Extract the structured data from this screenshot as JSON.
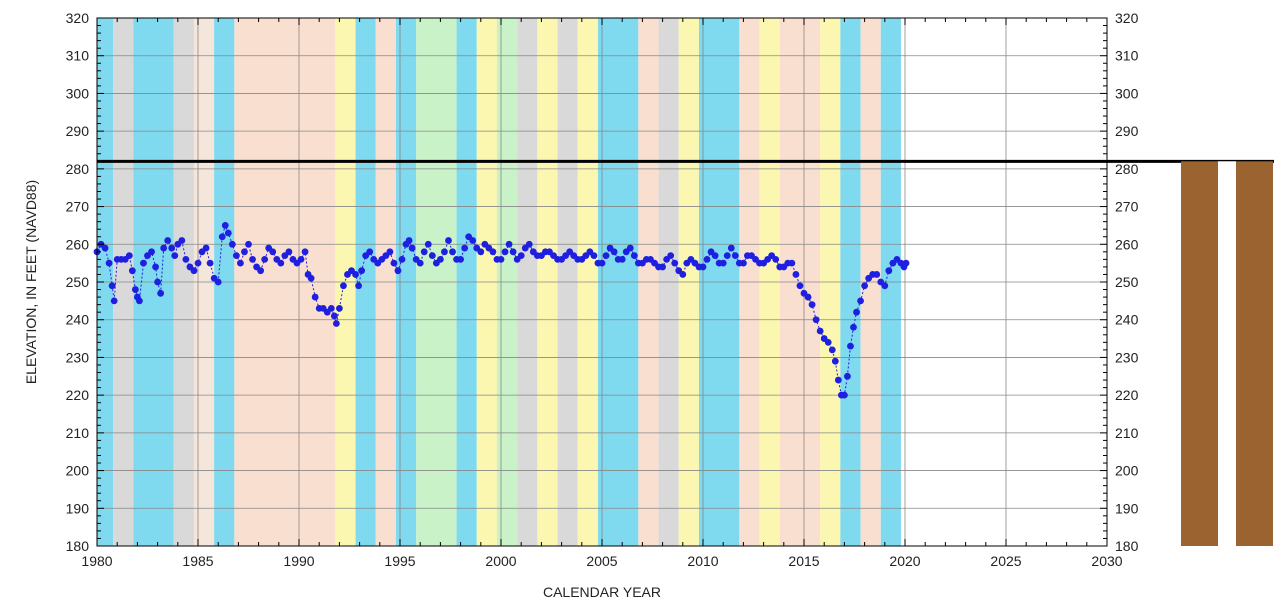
{
  "chart_data": {
    "type": "scatter",
    "title": "",
    "xlabel": "CALENDAR YEAR",
    "ylabel": "ELEVATION, IN FEET (NAVD88)",
    "xlim": [
      1980,
      2030
    ],
    "ylim": [
      180,
      320
    ],
    "x_ticks": [
      1980,
      1985,
      1990,
      1995,
      2000,
      2005,
      2010,
      2015,
      2020,
      2025,
      2030
    ],
    "y_ticks": [
      180,
      190,
      200,
      210,
      220,
      230,
      240,
      250,
      260,
      270,
      280,
      290,
      300,
      310,
      320
    ],
    "grid": true,
    "right_axis": true,
    "reference_line": {
      "value": 282,
      "color": "#000000"
    },
    "series": [
      {
        "color": "#1f1fe0",
        "points": [
          [
            1980.0,
            258
          ],
          [
            1980.2,
            260
          ],
          [
            1980.4,
            259
          ],
          [
            1980.6,
            255
          ],
          [
            1980.75,
            249
          ],
          [
            1980.85,
            245
          ],
          [
            1981.0,
            256
          ],
          [
            1981.2,
            256
          ],
          [
            1981.4,
            256
          ],
          [
            1981.6,
            257
          ],
          [
            1981.75,
            253
          ],
          [
            1981.9,
            248
          ],
          [
            1982.0,
            246
          ],
          [
            1982.1,
            245
          ],
          [
            1982.3,
            255
          ],
          [
            1982.5,
            257
          ],
          [
            1982.7,
            258
          ],
          [
            1982.9,
            254
          ],
          [
            1983.0,
            250
          ],
          [
            1983.15,
            247
          ],
          [
            1983.3,
            259
          ],
          [
            1983.5,
            261
          ],
          [
            1983.7,
            259
          ],
          [
            1983.85,
            257
          ],
          [
            1984.0,
            260
          ],
          [
            1984.2,
            261
          ],
          [
            1984.4,
            256
          ],
          [
            1984.6,
            254
          ],
          [
            1984.8,
            253
          ],
          [
            1985.0,
            255
          ],
          [
            1985.2,
            258
          ],
          [
            1985.4,
            259
          ],
          [
            1985.6,
            255
          ],
          [
            1985.8,
            251
          ],
          [
            1986.0,
            250
          ],
          [
            1986.2,
            262
          ],
          [
            1986.35,
            265
          ],
          [
            1986.5,
            263
          ],
          [
            1986.7,
            260
          ],
          [
            1986.9,
            257
          ],
          [
            1987.1,
            255
          ],
          [
            1987.3,
            258
          ],
          [
            1987.5,
            260
          ],
          [
            1987.7,
            256
          ],
          [
            1987.9,
            254
          ],
          [
            1988.1,
            253
          ],
          [
            1988.3,
            256
          ],
          [
            1988.5,
            259
          ],
          [
            1988.7,
            258
          ],
          [
            1988.9,
            256
          ],
          [
            1989.1,
            255
          ],
          [
            1989.3,
            257
          ],
          [
            1989.5,
            258
          ],
          [
            1989.7,
            256
          ],
          [
            1989.9,
            255
          ],
          [
            1990.1,
            256
          ],
          [
            1990.3,
            258
          ],
          [
            1990.45,
            252
          ],
          [
            1990.6,
            251
          ],
          [
            1990.8,
            246
          ],
          [
            1991.0,
            243
          ],
          [
            1991.2,
            243
          ],
          [
            1991.4,
            242
          ],
          [
            1991.6,
            243
          ],
          [
            1991.75,
            241
          ],
          [
            1991.85,
            239
          ],
          [
            1992.0,
            243
          ],
          [
            1992.2,
            249
          ],
          [
            1992.4,
            252
          ],
          [
            1992.6,
            253
          ],
          [
            1992.8,
            252
          ],
          [
            1992.95,
            249
          ],
          [
            1993.1,
            253
          ],
          [
            1993.3,
            257
          ],
          [
            1993.5,
            258
          ],
          [
            1993.7,
            256
          ],
          [
            1993.9,
            255
          ],
          [
            1994.1,
            256
          ],
          [
            1994.3,
            257
          ],
          [
            1994.5,
            258
          ],
          [
            1994.7,
            255
          ],
          [
            1994.9,
            253
          ],
          [
            1995.1,
            256
          ],
          [
            1995.3,
            260
          ],
          [
            1995.45,
            261
          ],
          [
            1995.6,
            259
          ],
          [
            1995.8,
            256
          ],
          [
            1996.0,
            255
          ],
          [
            1996.2,
            258
          ],
          [
            1996.4,
            260
          ],
          [
            1996.6,
            257
          ],
          [
            1996.8,
            255
          ],
          [
            1997.0,
            256
          ],
          [
            1997.2,
            258
          ],
          [
            1997.4,
            261
          ],
          [
            1997.6,
            258
          ],
          [
            1997.8,
            256
          ],
          [
            1998.0,
            256
          ],
          [
            1998.2,
            259
          ],
          [
            1998.4,
            262
          ],
          [
            1998.6,
            261
          ],
          [
            1998.8,
            259
          ],
          [
            1999.0,
            258
          ],
          [
            1999.2,
            260
          ],
          [
            1999.4,
            259
          ],
          [
            1999.6,
            258
          ],
          [
            1999.8,
            256
          ],
          [
            2000.0,
            256
          ],
          [
            2000.2,
            258
          ],
          [
            2000.4,
            260
          ],
          [
            2000.6,
            258
          ],
          [
            2000.8,
            256
          ],
          [
            2001.0,
            257
          ],
          [
            2001.2,
            259
          ],
          [
            2001.4,
            260
          ],
          [
            2001.6,
            258
          ],
          [
            2001.8,
            257
          ],
          [
            2002.0,
            257
          ],
          [
            2002.2,
            258
          ],
          [
            2002.4,
            258
          ],
          [
            2002.6,
            257
          ],
          [
            2002.8,
            256
          ],
          [
            2003.0,
            256
          ],
          [
            2003.2,
            257
          ],
          [
            2003.4,
            258
          ],
          [
            2003.6,
            257
          ],
          [
            2003.8,
            256
          ],
          [
            2004.0,
            256
          ],
          [
            2004.2,
            257
          ],
          [
            2004.4,
            258
          ],
          [
            2004.6,
            257
          ],
          [
            2004.8,
            255
          ],
          [
            2005.0,
            255
          ],
          [
            2005.2,
            257
          ],
          [
            2005.4,
            259
          ],
          [
            2005.6,
            258
          ],
          [
            2005.8,
            256
          ],
          [
            2006.0,
            256
          ],
          [
            2006.2,
            258
          ],
          [
            2006.4,
            259
          ],
          [
            2006.6,
            257
          ],
          [
            2006.8,
            255
          ],
          [
            2007.0,
            255
          ],
          [
            2007.2,
            256
          ],
          [
            2007.4,
            256
          ],
          [
            2007.6,
            255
          ],
          [
            2007.8,
            254
          ],
          [
            2008.0,
            254
          ],
          [
            2008.2,
            256
          ],
          [
            2008.4,
            257
          ],
          [
            2008.6,
            255
          ],
          [
            2008.8,
            253
          ],
          [
            2009.0,
            252
          ],
          [
            2009.2,
            255
          ],
          [
            2009.4,
            256
          ],
          [
            2009.6,
            255
          ],
          [
            2009.8,
            254
          ],
          [
            2010.0,
            254
          ],
          [
            2010.2,
            256
          ],
          [
            2010.4,
            258
          ],
          [
            2010.6,
            257
          ],
          [
            2010.8,
            255
          ],
          [
            2011.0,
            255
          ],
          [
            2011.2,
            257
          ],
          [
            2011.4,
            259
          ],
          [
            2011.6,
            257
          ],
          [
            2011.8,
            255
          ],
          [
            2012.0,
            255
          ],
          [
            2012.2,
            257
          ],
          [
            2012.4,
            257
          ],
          [
            2012.6,
            256
          ],
          [
            2012.8,
            255
          ],
          [
            2013.0,
            255
          ],
          [
            2013.2,
            256
          ],
          [
            2013.4,
            257
          ],
          [
            2013.6,
            256
          ],
          [
            2013.8,
            254
          ],
          [
            2014.0,
            254
          ],
          [
            2014.2,
            255
          ],
          [
            2014.4,
            255
          ],
          [
            2014.6,
            252
          ],
          [
            2014.8,
            249
          ],
          [
            2015.0,
            247
          ],
          [
            2015.2,
            246
          ],
          [
            2015.4,
            244
          ],
          [
            2015.6,
            240
          ],
          [
            2015.8,
            237
          ],
          [
            2016.0,
            235
          ],
          [
            2016.2,
            234
          ],
          [
            2016.4,
            232
          ],
          [
            2016.55,
            229
          ],
          [
            2016.7,
            224
          ],
          [
            2016.85,
            220
          ],
          [
            2017.0,
            220
          ],
          [
            2017.15,
            225
          ],
          [
            2017.3,
            233
          ],
          [
            2017.45,
            238
          ],
          [
            2017.6,
            242
          ],
          [
            2017.8,
            245
          ],
          [
            2018.0,
            249
          ],
          [
            2018.2,
            251
          ],
          [
            2018.4,
            252
          ],
          [
            2018.6,
            252
          ],
          [
            2018.8,
            250
          ],
          [
            2019.0,
            249
          ],
          [
            2019.2,
            253
          ],
          [
            2019.4,
            255
          ],
          [
            2019.6,
            256
          ],
          [
            2019.8,
            255
          ],
          [
            2019.95,
            254
          ],
          [
            2020.05,
            255
          ]
        ]
      }
    ],
    "background_bands": [
      {
        "from": 1980.0,
        "to": 1980.8,
        "color": "#7fd9ef"
      },
      {
        "from": 1980.8,
        "to": 1981.8,
        "color": "#d9d9d9"
      },
      {
        "from": 1981.8,
        "to": 1983.8,
        "color": "#7fd9ef"
      },
      {
        "from": 1983.8,
        "to": 1984.8,
        "color": "#d9d9d9"
      },
      {
        "from": 1984.8,
        "to": 1985.8,
        "color": "#f5e6dc"
      },
      {
        "from": 1985.8,
        "to": 1986.8,
        "color": "#7fd9ef"
      },
      {
        "from": 1986.8,
        "to": 1991.8,
        "color": "#f9dfd0"
      },
      {
        "from": 1991.8,
        "to": 1992.8,
        "color": "#fbf7b0"
      },
      {
        "from": 1992.8,
        "to": 1993.8,
        "color": "#7fd9ef"
      },
      {
        "from": 1993.8,
        "to": 1994.8,
        "color": "#f9dfd0"
      },
      {
        "from": 1994.8,
        "to": 1995.8,
        "color": "#7fd9ef"
      },
      {
        "from": 1995.8,
        "to": 1997.8,
        "color": "#c9f2c8"
      },
      {
        "from": 1997.8,
        "to": 1998.8,
        "color": "#7fd9ef"
      },
      {
        "from": 1998.8,
        "to": 1999.8,
        "color": "#fbf7b0"
      },
      {
        "from": 1999.8,
        "to": 2000.8,
        "color": "#c9f2c8"
      },
      {
        "from": 2000.8,
        "to": 2001.8,
        "color": "#d9d9d9"
      },
      {
        "from": 2001.8,
        "to": 2002.8,
        "color": "#fbf7b0"
      },
      {
        "from": 2002.8,
        "to": 2003.8,
        "color": "#d9d9d9"
      },
      {
        "from": 2003.8,
        "to": 2004.8,
        "color": "#fbf7b0"
      },
      {
        "from": 2004.8,
        "to": 2006.8,
        "color": "#7fd9ef"
      },
      {
        "from": 2006.8,
        "to": 2007.8,
        "color": "#f9dfd0"
      },
      {
        "from": 2007.8,
        "to": 2008.8,
        "color": "#d9d9d9"
      },
      {
        "from": 2008.8,
        "to": 2009.8,
        "color": "#fbf7b0"
      },
      {
        "from": 2009.8,
        "to": 2011.8,
        "color": "#7fd9ef"
      },
      {
        "from": 2011.8,
        "to": 2012.8,
        "color": "#f9dfd0"
      },
      {
        "from": 2012.8,
        "to": 2013.8,
        "color": "#fbf7b0"
      },
      {
        "from": 2013.8,
        "to": 2015.8,
        "color": "#f9dfd0"
      },
      {
        "from": 2015.8,
        "to": 2016.8,
        "color": "#fbf7b0"
      },
      {
        "from": 2016.8,
        "to": 2017.8,
        "color": "#7fd9ef"
      },
      {
        "from": 2017.8,
        "to": 2018.8,
        "color": "#f9dfd0"
      },
      {
        "from": 2018.8,
        "to": 2019.8,
        "color": "#7fd9ef"
      }
    ],
    "well_diagram": {
      "casing_color": "#9a6330",
      "bore_color": "#ffffff",
      "top_value": 282,
      "bottom_value": 180
    }
  },
  "colors": {
    "grid": "#888888",
    "axis": "#000000",
    "text": "#222222"
  }
}
